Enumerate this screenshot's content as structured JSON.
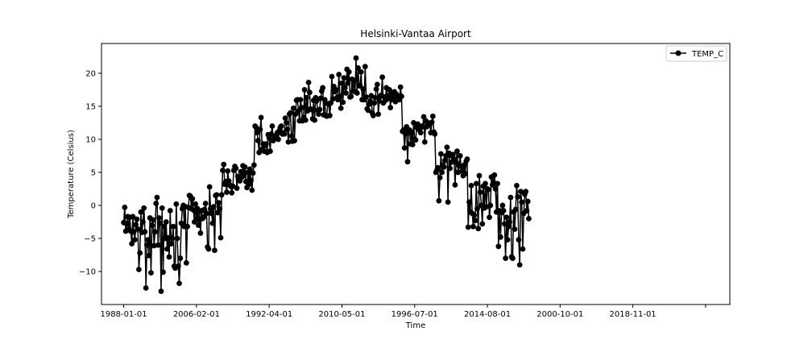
{
  "chart_data": {
    "type": "line",
    "title": "Helsinki-Vantaa Airport",
    "xlabel": "Time",
    "ylabel": "Temperature (Celsius)",
    "x_tick_labels": [
      "1988-01-01",
      "2006-02-01",
      "1992-04-01",
      "2010-05-01",
      "1996-07-01",
      "2014-08-01",
      "2000-10-01",
      "2018-11-01",
      ""
    ],
    "x_tick_positions": [
      0,
      72,
      144,
      216,
      288,
      360,
      432,
      504,
      576
    ],
    "x_range": [
      -22,
      600
    ],
    "y_ticks": [
      -10,
      -5,
      0,
      5,
      10,
      15,
      20
    ],
    "y_tick_labels": [
      "−10",
      "−5",
      "0",
      "5",
      "10",
      "15",
      "20"
    ],
    "ylim": [
      -15,
      24.5
    ],
    "grid": false,
    "legend_position": "top-right",
    "marker": "circle",
    "series": [
      {
        "name": "TEMP_C",
        "color": "#000000",
        "values": [
          -2.6,
          -0.3,
          -3.9,
          -2.8,
          -1.7,
          -3.6,
          -1.8,
          -3.9,
          -5.8,
          -1.7,
          -4.0,
          -5.2,
          -2.9,
          -2.1,
          -3.6,
          -9.7,
          -7.2,
          -1.0,
          -4.1,
          -2.5,
          -0.4,
          -4.0,
          -12.5,
          -6.0,
          -5.2,
          -7.6,
          -1.9,
          -10.2,
          -3.0,
          -2.2,
          -6.1,
          -4.0,
          0.3,
          1.2,
          -6.0,
          -1.9,
          -2.7,
          -13.0,
          -0.4,
          -10.1,
          -3.2,
          -5.0,
          -2.5,
          -6.6,
          -4.9,
          -7.8,
          -0.8,
          -5.8,
          -5.0,
          -3.2,
          -9.2,
          -9.5,
          0.2,
          -5.0,
          -9.2,
          -11.8,
          -8.0,
          -2.7,
          -0.5,
          0.0,
          -3.2,
          -0.2,
          -8.7,
          -3.2,
          -0.3,
          1.5,
          1.4,
          -0.5,
          1.0,
          -0.7,
          -2.5,
          0.2,
          -2.1,
          -0.5,
          -3.0,
          -0.9,
          -4.2,
          -0.8,
          -2.0,
          -1.8,
          -0.6,
          0.3,
          -1.2,
          -6.3,
          -6.6,
          2.8,
          -0.5,
          -1.2,
          -2.7,
          -0.2,
          -6.8,
          1.5,
          1.6,
          -1.1,
          0.4,
          -0.5,
          -4.9,
          1.6,
          5.3,
          6.2,
          3.2,
          3.6,
          2.0,
          5.2,
          3.7,
          3.1,
          2.9,
          1.9,
          2.9,
          5.3,
          5.9,
          5.6,
          2.6,
          4.4,
          4.0,
          3.7,
          5.1,
          4.3,
          6.0,
          4.5,
          5.8,
          3.6,
          2.7,
          5.0,
          3.2,
          5.5,
          3.8,
          2.3,
          4.9,
          6.1,
          12.0,
          11.8,
          11.0,
          9.8,
          8.0,
          11.5,
          13.3,
          8.5,
          9.3,
          8.2,
          9.1,
          9.3,
          8.0,
          10.7,
          10.2,
          8.2,
          10.8,
          12.0,
          9.8,
          10.5,
          10.2,
          10.6,
          11.0,
          10.0,
          11.3,
          11.8,
          12.0,
          10.8,
          11.0,
          10.8,
          13.2,
          12.5,
          11.5,
          9.6,
          13.8,
          14.0,
          10.5,
          9.7,
          14.7,
          9.8,
          13.8,
          15.9,
          16.0,
          14.3,
          12.8,
          16.0,
          14.8,
          12.8,
          13.3,
          17.5,
          12.9,
          16.3,
          14.3,
          18.6,
          17.1,
          14.6,
          14.5,
          13.1,
          15.9,
          12.9,
          16.3,
          15.8,
          14.4,
          13.8,
          14.5,
          16.2,
          17.3,
          17.8,
          13.7,
          16.0,
          13.6,
          13.5,
          15.4,
          15.3,
          13.6,
          15.5,
          19.5,
          16.1,
          18.0,
          17.2,
          17.5,
          16.3,
          16.0,
          19.8,
          16.5,
          14.7,
          18.5,
          15.6,
          19.3,
          17.8,
          17.0,
          20.6,
          18.5,
          20.2,
          16.4,
          16.5,
          19.1,
          17.3,
          18.9,
          17.2,
          22.3,
          17.0,
          20.8,
          18.1,
          18.1,
          20.2,
          16.0,
          17.6,
          16.0,
          21.0,
          16.4,
          14.6,
          14.4,
          15.3,
          15.8,
          16.6,
          14.0,
          13.6,
          15.5,
          16.3,
          17.6,
          18.3,
          13.8,
          15.8,
          16.5,
          16.7,
          19.4,
          15.5,
          16.4,
          15.9,
          17.8,
          16.1,
          16.6,
          17.5,
          14.8,
          17.0,
          16.0,
          16.5,
          17.2,
          15.7,
          16.8,
          16.5,
          16.0,
          16.0,
          17.9,
          16.5,
          11.2,
          11.4,
          8.7,
          10.8,
          11.9,
          6.6,
          11.0,
          11.4,
          9.3,
          11.0,
          9.2,
          12.5,
          10.0,
          9.9,
          11.8,
          12.3,
          11.5,
          11.5,
          11.0,
          12.0,
          11.9,
          13.4,
          9.6,
          12.8,
          11.9,
          12.5,
          12.2,
          12.3,
          11.0,
          12.6,
          13.5,
          11.1,
          10.8,
          5.0,
          5.3,
          5.7,
          0.7,
          4.2,
          7.8,
          5.0,
          6.1,
          5.8,
          6.8,
          7.5,
          8.8,
          0.5,
          7.9,
          5.6,
          6.5,
          7.5,
          7.7,
          7.0,
          3.1,
          6.5,
          8.2,
          5.0,
          6.0,
          7.5,
          5.9,
          5.2,
          4.5,
          6.1,
          4.8,
          6.7,
          7.0,
          -3.3,
          0.5,
          -1.0,
          3.0,
          -1.2,
          -3.2,
          -1.5,
          -2.3,
          3.3,
          -0.5,
          -3.5,
          4.5,
          2.0,
          0.0,
          -2.8,
          2.9,
          -0.4,
          3.3,
          -0.2,
          2.5,
          2.4,
          -1.8,
          0.0,
          4.3,
          3.1,
          3.5,
          4.6,
          2.5,
          -1.0,
          3.3,
          -6.2,
          -0.8,
          -4.8,
          -1.1,
          0.0,
          -0.8,
          -2.8,
          -8.0,
          -1.8,
          -5.2,
          -3.2,
          -2.5,
          1.2,
          -7.8,
          -8.0,
          -1.0,
          -3.6,
          -0.6,
          3.0,
          1.3,
          -5.2,
          -9.0,
          2.1,
          0.5,
          -6.6,
          -1.2,
          1.7,
          2.1,
          -0.8,
          0.6,
          -2.0
        ]
      }
    ]
  }
}
